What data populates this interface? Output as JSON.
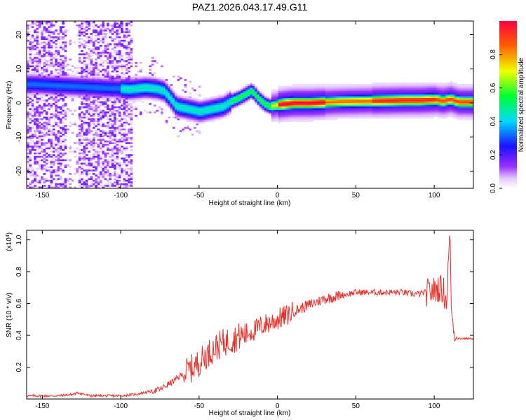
{
  "title": "PAZ1.2026.043.17.49.G11",
  "colors": {
    "snr_line": "#e8302a",
    "axis": "#000000",
    "background": "#ffffff"
  },
  "chart_data": [
    {
      "type": "heatmap",
      "title": "PAZ1.2026.043.17.49.G11",
      "xlabel": "Height of straight line (km)",
      "ylabel": "Frequency (Hz)",
      "xlim": [
        -160,
        125
      ],
      "ylim": [
        -25,
        24
      ],
      "xticks": [
        -150,
        -100,
        -50,
        0,
        50,
        100
      ],
      "yticks": [
        -20,
        -10,
        0,
        10,
        20
      ],
      "colorbar": {
        "label": "Normalized spectral amplitude",
        "range": [
          0.0,
          1.0
        ],
        "ticks": [
          0.0,
          0.2,
          0.4,
          0.6,
          0.8
        ],
        "colormap": "rainbow (violet-blue-cyan-green-yellow-red)"
      },
      "ridge": {
        "description": "dominant frequency track vs height",
        "x": [
          -155,
          -145,
          -135,
          -125,
          -115,
          -105,
          -100,
          -95,
          -85,
          -78,
          -73,
          -70,
          -65,
          -60,
          -55,
          -50,
          -45,
          -40,
          -35,
          -30,
          -25,
          -20,
          -17,
          -12,
          -8,
          -5,
          0,
          5,
          10,
          20,
          30,
          40,
          50,
          60,
          70,
          80,
          90,
          95,
          100,
          105,
          110,
          115,
          120,
          125
        ],
        "y": [
          5.5,
          5.2,
          5.0,
          4.8,
          4.5,
          4.3,
          4.2,
          4.0,
          4.5,
          4.2,
          3.5,
          2.0,
          -1.0,
          -1.5,
          -2.0,
          -2.5,
          -2.0,
          -1.5,
          -1.0,
          0.5,
          1.5,
          2.8,
          3.6,
          1.0,
          -0.5,
          -1.0,
          -0.5,
          -0.2,
          0.0,
          0.0,
          0.2,
          0.4,
          0.5,
          0.6,
          0.7,
          0.8,
          0.8,
          0.9,
          1.0,
          0.6,
          1.1,
          0.3,
          0.3,
          0.3
        ]
      }
    },
    {
      "type": "line",
      "xlabel": "Height of straight line (km)",
      "ylabel": "SNR (10 * v/v)",
      "yscale_label": "(x10^4)",
      "xlim": [
        -160,
        125
      ],
      "ylim": [
        0.0,
        1.06
      ],
      "xticks": [
        -150,
        -100,
        -50,
        0,
        50,
        100
      ],
      "yticks": [
        0.2,
        0.4,
        0.6,
        0.8,
        1.0
      ],
      "series": [
        {
          "name": "SNR",
          "x": [
            -160,
            -150,
            -140,
            -130,
            -127,
            -120,
            -110,
            -100,
            -90,
            -80,
            -75,
            -70,
            -65,
            -60,
            -55,
            -50,
            -45,
            -40,
            -35,
            -30,
            -25,
            -20,
            -15,
            -10,
            -5,
            0,
            5,
            10,
            15,
            20,
            25,
            30,
            35,
            40,
            45,
            50,
            55,
            60,
            65,
            70,
            75,
            80,
            85,
            90,
            95,
            100,
            103,
            106,
            108,
            109,
            110,
            111,
            112,
            113,
            115,
            120,
            125
          ],
          "values": [
            0.02,
            0.02,
            0.02,
            0.03,
            0.04,
            0.02,
            0.02,
            0.02,
            0.03,
            0.05,
            0.06,
            0.09,
            0.12,
            0.16,
            0.19,
            0.23,
            0.28,
            0.32,
            0.35,
            0.37,
            0.39,
            0.41,
            0.43,
            0.46,
            0.48,
            0.5,
            0.52,
            0.55,
            0.57,
            0.59,
            0.61,
            0.63,
            0.64,
            0.65,
            0.66,
            0.67,
            0.67,
            0.67,
            0.67,
            0.67,
            0.67,
            0.67,
            0.66,
            0.66,
            0.67,
            0.68,
            0.7,
            0.68,
            0.6,
            0.85,
            1.06,
            0.55,
            0.47,
            0.4,
            0.38,
            0.38,
            0.38
          ]
        }
      ]
    }
  ]
}
